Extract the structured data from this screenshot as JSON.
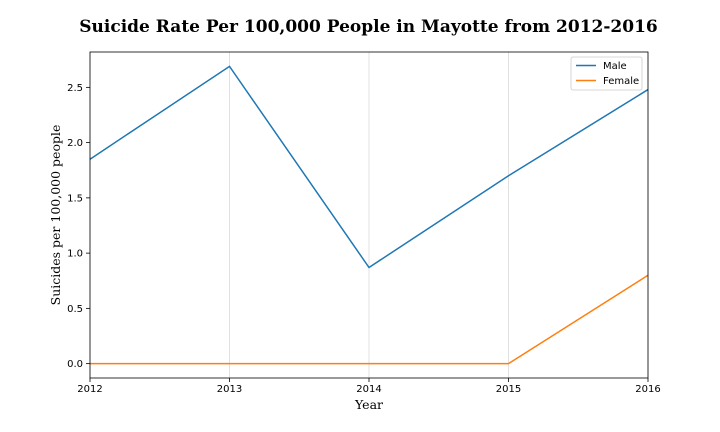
{
  "chart_data": {
    "type": "line",
    "title": "Suicide Rate Per 100,000 People in Mayotte from 2012-2016",
    "xlabel": "Year",
    "ylabel": "Suicides per 100,000 people",
    "x": [
      2012,
      2013,
      2014,
      2015,
      2016
    ],
    "x_tick_labels": [
      "2012",
      "2013",
      "2014",
      "2015",
      "2016"
    ],
    "y_ticks": [
      0.0,
      0.5,
      1.0,
      1.5,
      2.0,
      2.5
    ],
    "y_tick_labels": [
      "0.0",
      "0.5",
      "1.0",
      "1.5",
      "2.0",
      "2.5"
    ],
    "xlim": [
      2012,
      2016
    ],
    "ylim": [
      -0.13,
      2.82
    ],
    "grid": "vertical",
    "legend_position": "top-right",
    "series": [
      {
        "name": "Male",
        "color": "#1f77b4",
        "values": [
          1.85,
          2.69,
          0.87,
          1.7,
          2.48
        ]
      },
      {
        "name": "Female",
        "color": "#ff7f0e",
        "values": [
          0.0,
          0.0,
          0.0,
          0.0,
          0.8
        ]
      }
    ]
  }
}
